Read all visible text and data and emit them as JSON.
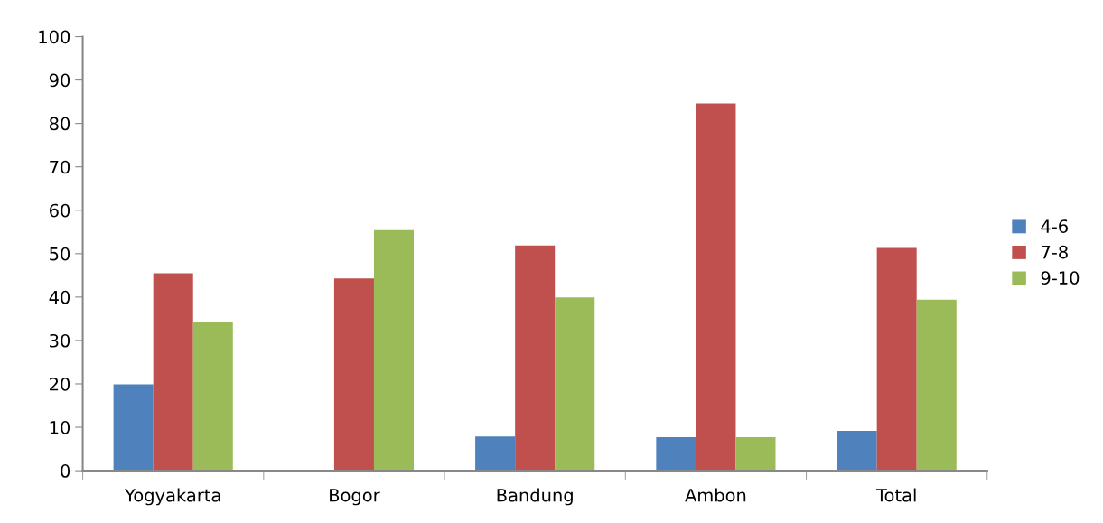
{
  "chart_data": {
    "type": "bar",
    "categories": [
      "Yogyakarta",
      "Bogor",
      "Bandung",
      "Ambon",
      "Total"
    ],
    "series": [
      {
        "name": "4-6",
        "color": "#4f81bd",
        "values": [
          19.9,
          0,
          7.9,
          7.7,
          9.2
        ]
      },
      {
        "name": "7-8",
        "color": "#c0504d",
        "values": [
          45.5,
          44.3,
          51.9,
          84.6,
          51.3
        ]
      },
      {
        "name": "9-10",
        "color": "#9bbb59",
        "values": [
          34.2,
          55.4,
          39.9,
          7.7,
          39.4
        ]
      }
    ],
    "ylim": [
      0,
      100
    ],
    "yticks": [
      0,
      10,
      20,
      30,
      40,
      50,
      60,
      70,
      80,
      90,
      100
    ],
    "grid": false,
    "legend": "right"
  }
}
